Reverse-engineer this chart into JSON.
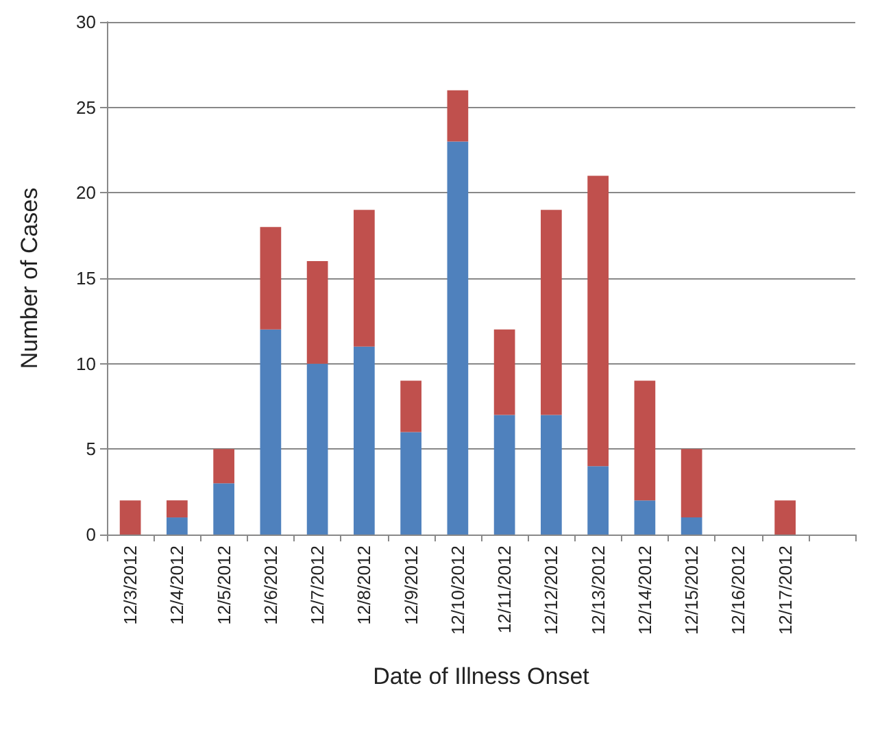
{
  "chart_data": {
    "type": "bar",
    "stacked": true,
    "xlabel": "Date of Illness Onset",
    "ylabel": "Number of Cases",
    "categories": [
      "12/3/2012",
      "12/4/2012",
      "12/5/2012",
      "12/6/2012",
      "12/7/2012",
      "12/8/2012",
      "12/9/2012",
      "12/10/2012",
      "12/11/2012",
      "12/12/2012",
      "12/13/2012",
      "12/14/2012",
      "12/15/2012",
      "12/16/2012",
      "12/17/2012",
      null
    ],
    "series": [
      {
        "color": "#4f81bd",
        "values": [
          0,
          1,
          3,
          12,
          10,
          11,
          6,
          23,
          7,
          7,
          4,
          2,
          1,
          0,
          0,
          null
        ]
      },
      {
        "color": "#c0504d",
        "values": [
          2,
          1,
          2,
          6,
          6,
          8,
          3,
          3,
          5,
          12,
          17,
          7,
          4,
          0,
          2,
          null
        ]
      }
    ],
    "ylim": [
      0,
      30
    ],
    "yticks": [
      0,
      5,
      10,
      15,
      20,
      25,
      30
    ],
    "grid": "y"
  }
}
